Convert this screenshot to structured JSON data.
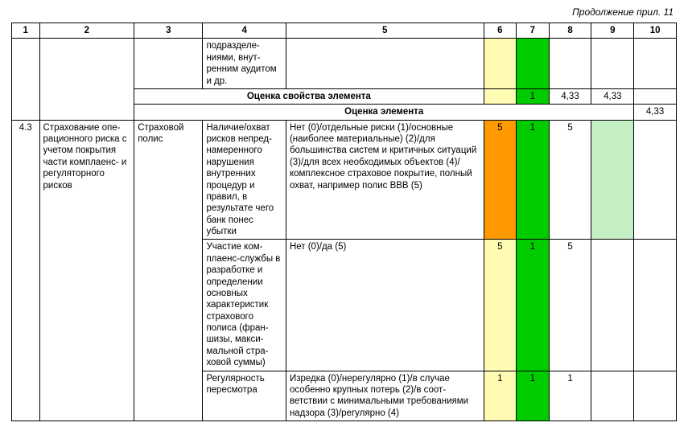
{
  "caption": "Продолжение прил. 11",
  "colors": {
    "yellow": "#fffbb3",
    "orange": "#ff9900",
    "green": "#00cc00",
    "lightgreen": "#c4f0c4",
    "white": "#ffffff"
  },
  "header_numbers": [
    "1",
    "2",
    "3",
    "4",
    "5",
    "6",
    "7",
    "8",
    "9",
    "10"
  ],
  "row_top": {
    "c4": "подразделе­ниями, внут­ренним ауди­том и др.",
    "c6_bg": "yellow",
    "c7_bg": "green"
  },
  "row_prop": {
    "label": "Оценка свойства элемента",
    "c6": "",
    "c6_bg": "yellow",
    "c7": "1",
    "c7_bg": "green",
    "c8": "4,33",
    "c9": "4,33",
    "c10": ""
  },
  "row_elem": {
    "label": "Оценка элемента",
    "c10": "4,33"
  },
  "section": {
    "num": "4.3",
    "c2": "Страхование опе­рационного риска с учетом покрытия части комплаенс- и регуляторного рисков",
    "c3": "Страховой полис"
  },
  "r1": {
    "c4": "Наличие/охват рисков непред­намеренного нарушения внутренних процедур и правил, в результате чего банк понес убытки",
    "c5": "Нет (0)/отдельные риски (1)/основные (наиболее материальные) (2)/для большинства систем и критичных ситу­аций (3)/для всех необходимых объек­тов (4)/комплексное страховое покры­тие, полный охват, например полис BBB (5)",
    "c6": "5",
    "c6_bg": "orange",
    "c7": "1",
    "c7_bg": "green",
    "c8": "5",
    "c9_bg": "lightgreen"
  },
  "r2": {
    "c4": "Участие ком­плаенс-служ­бы в разработ­ке и определе­нии основных характеристик страхового полиса (фран­шизы, макси­мальной стра­ховой суммы)",
    "c5": "Нет (0)/да (5)",
    "c6": "5",
    "c6_bg": "yellow",
    "c7": "1",
    "c7_bg": "green",
    "c8": "5"
  },
  "r3": {
    "c4": "Регулярность пересмотра",
    "c5": "Изредка (0)/нерегулярно (1)/в случае особенно крупных потерь (2)/в соот­ветствии с минимальными требования­ми надзора (3)/регулярно (4)",
    "c6": "1",
    "c6_bg": "yellow",
    "c7": "1",
    "c7_bg": "green",
    "c8": "1"
  }
}
